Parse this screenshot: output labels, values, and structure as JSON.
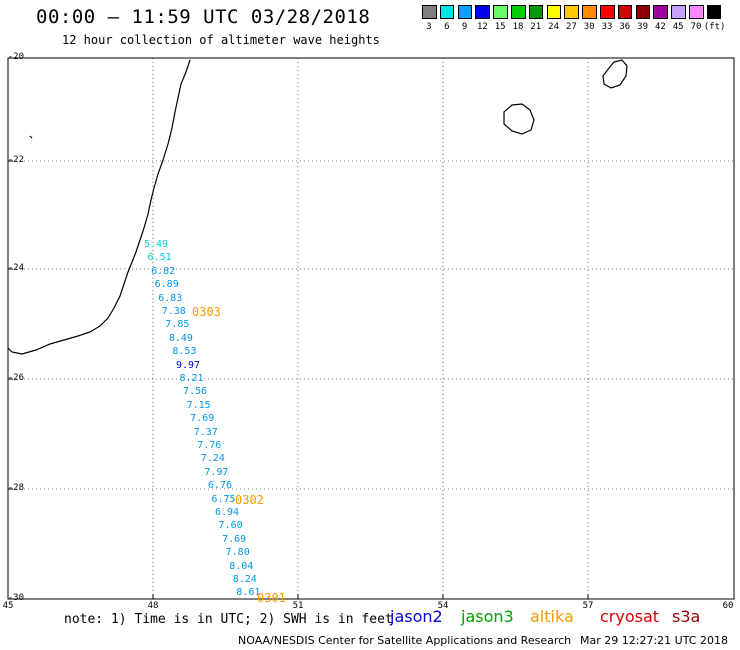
{
  "title": "00:00 – 11:59 UTC 03/28/2018",
  "subtitle": "12 hour collection of altimeter wave heights",
  "legend": {
    "swatches": [
      {
        "color": "#7f7f7f",
        "label": "3"
      },
      {
        "color": "#00e5e5",
        "label": "6"
      },
      {
        "color": "#00a3ff",
        "label": "9"
      },
      {
        "color": "#0000ee",
        "label": "12"
      },
      {
        "color": "#66ff66",
        "label": "15"
      },
      {
        "color": "#00cc00",
        "label": "18"
      },
      {
        "color": "#009900",
        "label": "21"
      },
      {
        "color": "#ffff00",
        "label": "24"
      },
      {
        "color": "#ffc800",
        "label": "27"
      },
      {
        "color": "#ff8c00",
        "label": "30"
      },
      {
        "color": "#ff0000",
        "label": "33"
      },
      {
        "color": "#cc0000",
        "label": "36"
      },
      {
        "color": "#8b0000",
        "label": "39"
      },
      {
        "color": "#a000a0",
        "label": "42"
      },
      {
        "color": "#c8a0ff",
        "label": "45"
      },
      {
        "color": "#ff88ff",
        "label": "70"
      },
      {
        "color": "#000000",
        "label": "(ft)"
      }
    ]
  },
  "axes": {
    "y_labels": [
      "-20",
      "-22",
      "-24",
      "-26",
      "-28",
      "-30"
    ],
    "x_labels": [
      "45",
      "48",
      "51",
      "54",
      "57",
      "60"
    ]
  },
  "wave_heights": [
    {
      "value": "5.49",
      "color": "#00d2d2"
    },
    {
      "value": "6.51",
      "color": "#00d2d2"
    },
    {
      "value": "6.82",
      "color": "#0096e6"
    },
    {
      "value": "6.89",
      "color": "#0096e6"
    },
    {
      "value": "6.83",
      "color": "#0096e6"
    },
    {
      "value": "7.38",
      "color": "#0096e6"
    },
    {
      "value": "7.85",
      "color": "#0096e6"
    },
    {
      "value": "8.49",
      "color": "#0096e6"
    },
    {
      "value": "8.53",
      "color": "#0096e6"
    },
    {
      "value": "9.97",
      "color": "#0000c8"
    },
    {
      "value": "8.21",
      "color": "#0096e6"
    },
    {
      "value": "7.56",
      "color": "#0096e6"
    },
    {
      "value": "7.15",
      "color": "#0096e6"
    },
    {
      "value": "7.69",
      "color": "#0096e6"
    },
    {
      "value": "7.37",
      "color": "#0096e6"
    },
    {
      "value": "7.76",
      "color": "#0096e6"
    },
    {
      "value": "7.24",
      "color": "#0096e6"
    },
    {
      "value": "7.97",
      "color": "#0096e6"
    },
    {
      "value": "6.76",
      "color": "#0096e6"
    },
    {
      "value": "6.75",
      "color": "#0096e6"
    },
    {
      "value": "6.94",
      "color": "#0096e6"
    },
    {
      "value": "7.60",
      "color": "#0096e6"
    },
    {
      "value": "7.69",
      "color": "#0096e6"
    },
    {
      "value": "7.80",
      "color": "#0096e6"
    },
    {
      "value": "8.04",
      "color": "#0096e6"
    },
    {
      "value": "8.24",
      "color": "#0096e6"
    },
    {
      "value": "8.61",
      "color": "#0096e6"
    }
  ],
  "pass_times": [
    "0303",
    "0302",
    "0301"
  ],
  "note": "note: 1) Time is in UTC; 2) SWH is in feet",
  "satellites": [
    {
      "name": "jason2",
      "color": "#0000dd"
    },
    {
      "name": "jason3",
      "color": "#00a000"
    },
    {
      "name": "altika",
      "color": "#f59a00"
    },
    {
      "name": "cryosat",
      "color": "#dd0000"
    },
    {
      "name": "s3a",
      "color": "#990000"
    }
  ],
  "credit": "NOAA/NESDIS Center for Satellite Applications and Research",
  "timestamp": "Mar 29 12:27:21 UTC 2018"
}
